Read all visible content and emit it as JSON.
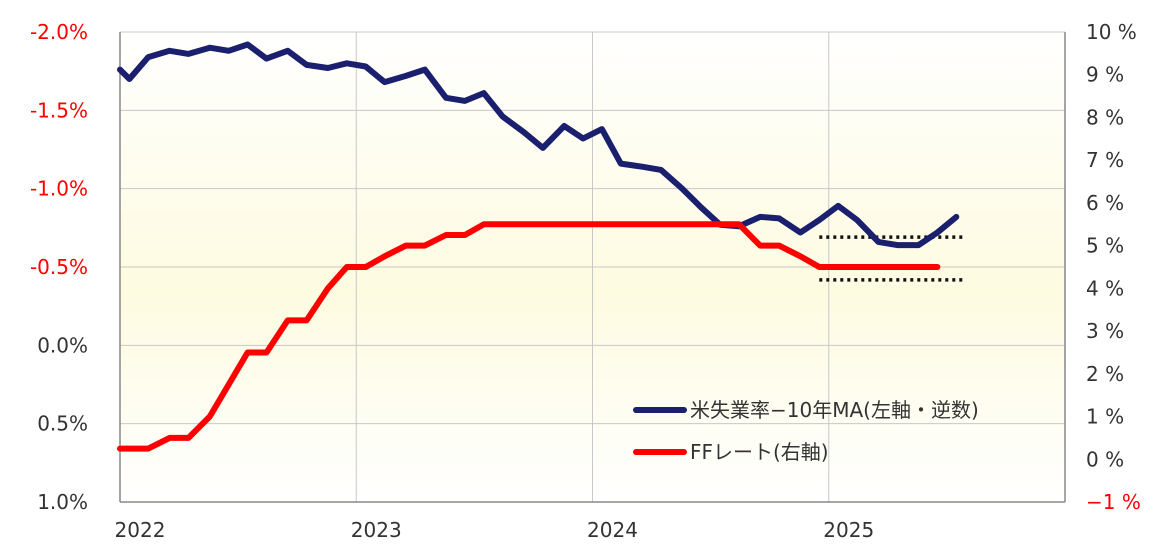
{
  "chart_data": {
    "type": "line",
    "x_axis": {
      "ticks": [
        "2022",
        "2023",
        "2024",
        "2025"
      ],
      "range": [
        2022.0,
        2026.0
      ]
    },
    "y_left": {
      "ticks": [
        "-2.0%",
        "-1.5%",
        "-1.0%",
        "-0.5%",
        "0.0%",
        "0.5%",
        "1.0%"
      ],
      "range": [
        -2.0,
        1.0
      ],
      "inverted": true,
      "negative_color": "#ff0000",
      "positive_color": "#333333"
    },
    "y_right": {
      "ticks": [
        "10 %",
        "9 %",
        "8 %",
        "7 %",
        "6 %",
        "5 %",
        "4 %",
        "3 %",
        "2 %",
        "1 %",
        "0 %",
        "−1 %"
      ],
      "range": [
        -1,
        10
      ],
      "negative_color": "#ff0000",
      "positive_color": "#333333"
    },
    "grid": true,
    "background_gradient": [
      "#ffffff",
      "#fdfbe0",
      "#ffffff"
    ],
    "legend_position": "bottom-right",
    "series": [
      {
        "name": "米失業率−10年MA(左軸・逆数)",
        "axis": "left",
        "color": "#1a1f6e",
        "points": [
          [
            2022.0,
            -1.76
          ],
          [
            2022.04,
            -1.7
          ],
          [
            2022.12,
            -1.84
          ],
          [
            2022.21,
            -1.88
          ],
          [
            2022.29,
            -1.86
          ],
          [
            2022.38,
            -1.9
          ],
          [
            2022.46,
            -1.88
          ],
          [
            2022.54,
            -1.92
          ],
          [
            2022.62,
            -1.83
          ],
          [
            2022.71,
            -1.88
          ],
          [
            2022.79,
            -1.79
          ],
          [
            2022.88,
            -1.77
          ],
          [
            2022.96,
            -1.8
          ],
          [
            2023.04,
            -1.78
          ],
          [
            2023.12,
            -1.68
          ],
          [
            2023.21,
            -1.72
          ],
          [
            2023.29,
            -1.76
          ],
          [
            2023.38,
            -1.58
          ],
          [
            2023.46,
            -1.56
          ],
          [
            2023.54,
            -1.61
          ],
          [
            2023.62,
            -1.46
          ],
          [
            2023.71,
            -1.36
          ],
          [
            2023.79,
            -1.26
          ],
          [
            2023.88,
            -1.4
          ],
          [
            2023.96,
            -1.32
          ],
          [
            2024.04,
            -1.38
          ],
          [
            2024.12,
            -1.16
          ],
          [
            2024.21,
            -1.14
          ],
          [
            2024.29,
            -1.12
          ],
          [
            2024.38,
            -1.0
          ],
          [
            2024.46,
            -0.88
          ],
          [
            2024.54,
            -0.77
          ],
          [
            2024.62,
            -0.76
          ],
          [
            2024.71,
            -0.82
          ],
          [
            2024.79,
            -0.81
          ],
          [
            2024.88,
            -0.72
          ],
          [
            2024.96,
            -0.8
          ],
          [
            2025.04,
            -0.89
          ],
          [
            2025.12,
            -0.8
          ],
          [
            2025.21,
            -0.66
          ],
          [
            2025.29,
            -0.64
          ],
          [
            2025.38,
            -0.64
          ],
          [
            2025.46,
            -0.72
          ],
          [
            2025.54,
            -0.82
          ]
        ]
      },
      {
        "name": "FFレート(右軸)",
        "axis": "right",
        "color": "#ff0000",
        "points": [
          [
            2022.0,
            0.25
          ],
          [
            2022.12,
            0.25
          ],
          [
            2022.21,
            0.5
          ],
          [
            2022.29,
            0.5
          ],
          [
            2022.38,
            1.0
          ],
          [
            2022.46,
            1.75
          ],
          [
            2022.54,
            2.5
          ],
          [
            2022.62,
            2.5
          ],
          [
            2022.71,
            3.25
          ],
          [
            2022.79,
            3.25
          ],
          [
            2022.88,
            4.0
          ],
          [
            2022.96,
            4.5
          ],
          [
            2023.04,
            4.5
          ],
          [
            2023.12,
            4.75
          ],
          [
            2023.21,
            5.0
          ],
          [
            2023.29,
            5.0
          ],
          [
            2023.38,
            5.25
          ],
          [
            2023.46,
            5.25
          ],
          [
            2023.54,
            5.5
          ],
          [
            2024.62,
            5.5
          ],
          [
            2024.71,
            5.0
          ],
          [
            2024.79,
            5.0
          ],
          [
            2024.88,
            4.75
          ],
          [
            2024.96,
            4.5
          ],
          [
            2025.46,
            4.5
          ]
        ]
      }
    ],
    "reference_lines": [
      {
        "axis": "right",
        "value": 5.2,
        "x_range": [
          2024.96,
          2025.58
        ],
        "style": "dotted",
        "color": "#111111"
      },
      {
        "axis": "right",
        "value": 4.2,
        "x_range": [
          2024.96,
          2025.58
        ],
        "style": "dotted",
        "color": "#111111"
      }
    ]
  }
}
